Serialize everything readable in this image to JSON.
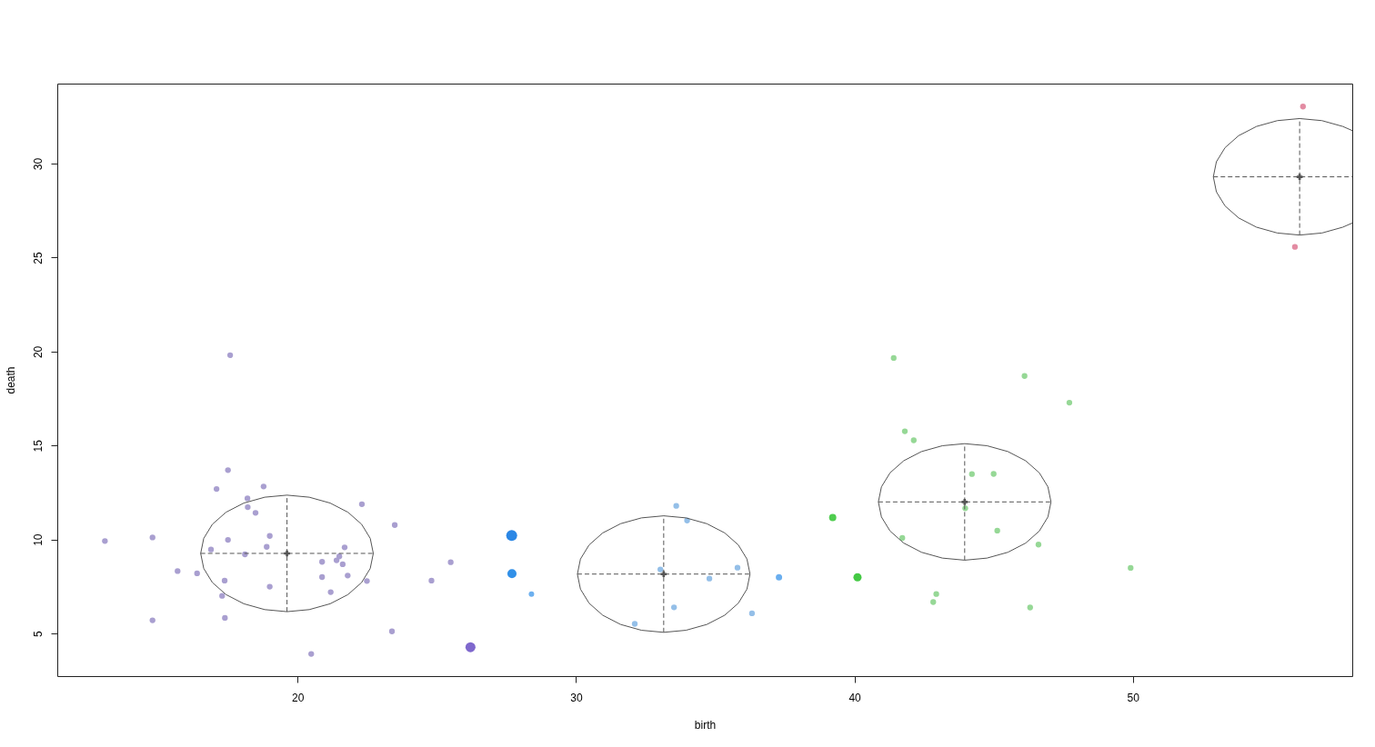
{
  "chart_data": {
    "type": "bubble",
    "xlabel": "birth",
    "ylabel": "death",
    "xlim": [
      11.37,
      57.88
    ],
    "ylim": [
      2.73,
      34.26
    ],
    "xticks": [
      20,
      30,
      40,
      50
    ],
    "yticks": [
      5,
      10,
      15,
      20,
      25,
      30
    ],
    "grid": false,
    "series": [
      {
        "x": [
          26.21,
          27.69,
          27.7,
          28.4,
          37.29,
          39.22,
          40.11
        ],
        "values": [
          4.27,
          10.21,
          8.18,
          7.1,
          7.99,
          11.17,
          7.99
        ],
        "sizes": [
          0.84,
          1,
          0.7,
          0.25,
          0.34,
          0.44,
          0.56
        ],
        "colors": [
          "#7f68cd",
          "#2b87e5",
          "#3190e8",
          "#6db0ef",
          "#6aaeef",
          "#4fcd4f",
          "#44c944"
        ]
      },
      {
        "type": "scatter",
        "color": "#a99fd0",
        "x": [
          13.08,
          14.79,
          14.79,
          15.69,
          16.39,
          16.89,
          17.09,
          17.29,
          17.38,
          17.39,
          17.5,
          17.5,
          17.58,
          18.11,
          18.2,
          18.21,
          18.49,
          18.78,
          18.89,
          19.0,
          19.0,
          20.49,
          20.88,
          20.88,
          21.19,
          21.4,
          21.5,
          21.62,
          21.69,
          21.8,
          22.31,
          22.49,
          23.49,
          23.39,
          24.81,
          25.5
        ],
        "values": [
          9.92,
          10.11,
          5.7,
          8.32,
          8.2,
          9.47,
          12.69,
          7.0,
          7.81,
          5.83,
          13.69,
          9.98,
          19.81,
          9.21,
          12.19,
          11.72,
          11.42,
          12.82,
          9.61,
          10.19,
          7.49,
          3.91,
          8.81,
          8.0,
          7.2,
          8.89,
          9.1,
          8.68,
          9.58,
          8.08,
          11.88,
          7.79,
          10.77,
          5.11,
          7.81,
          8.79
        ]
      },
      {
        "type": "scatter",
        "color": "#94bfe8",
        "x": [
          32.11,
          33.03,
          33.52,
          33.6,
          33.99,
          34.79,
          35.8,
          36.32
        ],
        "values": [
          5.51,
          8.41,
          6.39,
          11.79,
          11.01,
          7.92,
          8.5,
          6.07
        ]
      },
      {
        "type": "scatter",
        "color": "#96d896",
        "x": [
          41.41,
          41.72,
          41.81,
          42.13,
          42.83,
          42.94,
          43.98,
          44.22,
          45.0,
          45.13,
          46.11,
          46.31,
          46.61,
          47.72,
          49.92
        ],
        "values": [
          19.66,
          10.08,
          15.76,
          15.28,
          6.67,
          7.1,
          11.66,
          13.48,
          13.49,
          10.47,
          18.7,
          6.38,
          9.73,
          17.28,
          8.49
        ]
      },
      {
        "type": "scatter",
        "color": "#e38ca3",
        "x": [
          55.82,
          56.11
        ],
        "values": [
          25.57,
          33.04
        ]
      },
      {
        "type": "line",
        "color": "#555555",
        "x": [
          16.52,
          16.63,
          16.94,
          17.43,
          18.07,
          18.82,
          19.62,
          20.42,
          21.17,
          21.81,
          22.3,
          22.61,
          22.72
        ],
        "values": [
          9.26,
          10.06,
          10.81,
          11.45,
          11.94,
          12.25,
          12.36,
          12.25,
          11.94,
          11.45,
          10.81,
          10.06,
          9.26
        ]
      },
      {
        "type": "line",
        "color": "#555555",
        "x": [
          16.52,
          16.63,
          16.94,
          17.43,
          18.07,
          18.82,
          19.62,
          20.42,
          21.17,
          21.81,
          22.3,
          22.61,
          22.72
        ],
        "values": [
          9.26,
          8.46,
          7.71,
          7.07,
          6.58,
          6.27,
          6.16,
          6.27,
          6.58,
          7.07,
          7.71,
          8.46,
          9.26
        ]
      },
      {
        "type": "line",
        "color": "#555555",
        "x": [
          30.05,
          30.16,
          30.47,
          30.96,
          31.6,
          32.35,
          33.15,
          33.95,
          34.7,
          35.34,
          35.83,
          36.14,
          36.25
        ],
        "values": [
          8.16,
          8.96,
          9.71,
          10.35,
          10.84,
          11.15,
          11.26,
          11.15,
          10.84,
          10.35,
          9.71,
          8.96,
          8.16
        ]
      },
      {
        "type": "line",
        "color": "#555555",
        "x": [
          30.05,
          30.16,
          30.47,
          30.96,
          31.6,
          32.35,
          33.15,
          33.95,
          34.7,
          35.34,
          35.83,
          36.14,
          36.25
        ],
        "values": [
          8.16,
          7.36,
          6.61,
          5.97,
          5.48,
          5.17,
          5.06,
          5.17,
          5.48,
          5.97,
          6.61,
          7.36,
          8.16
        ]
      },
      {
        "type": "line",
        "color": "#555555",
        "x": [
          40.86,
          40.97,
          41.28,
          41.77,
          42.41,
          43.16,
          43.96,
          44.76,
          45.51,
          46.15,
          46.64,
          46.95,
          47.06
        ],
        "values": [
          12.0,
          12.8,
          13.55,
          14.19,
          14.68,
          14.99,
          15.1,
          14.99,
          14.68,
          14.19,
          13.55,
          12.8,
          12.0
        ]
      },
      {
        "type": "line",
        "color": "#555555",
        "x": [
          40.86,
          40.97,
          41.28,
          41.77,
          42.41,
          43.16,
          43.96,
          44.76,
          45.51,
          46.15,
          46.64,
          46.95,
          47.06
        ],
        "values": [
          12.0,
          11.2,
          10.45,
          9.81,
          9.32,
          9.01,
          8.9,
          9.01,
          9.32,
          9.81,
          10.45,
          11.2,
          12.0
        ]
      },
      {
        "type": "line",
        "color": "#555555",
        "x": [
          52.89,
          53.0,
          53.31,
          53.8,
          54.44,
          55.19,
          55.99,
          56.79,
          57.54,
          57.88
        ],
        "values": [
          29.3,
          30.1,
          30.85,
          31.49,
          31.98,
          32.29,
          32.4,
          32.29,
          31.98,
          31.76
        ]
      },
      {
        "type": "line",
        "color": "#555555",
        "x": [
          52.89,
          53.0,
          53.31,
          53.8,
          54.44,
          55.19,
          55.99,
          56.79,
          57.54,
          57.88
        ],
        "values": [
          29.3,
          28.5,
          27.75,
          27.11,
          26.62,
          26.31,
          26.2,
          26.31,
          26.62,
          26.84
        ]
      },
      {
        "type": "scatter",
        "marker": "cross",
        "color": "#555555",
        "line_style": "dashed",
        "x": [
          19.62,
          33.15,
          43.96,
          55.99
        ],
        "values": [
          9.26,
          8.16,
          12.0,
          29.3
        ],
        "errors": [
          3.1,
          3.1,
          3.1,
          3.1
        ],
        "xerrors": [
          3.1,
          3.1,
          3.1,
          [
            52.89,
            57.88
          ]
        ]
      }
    ]
  }
}
